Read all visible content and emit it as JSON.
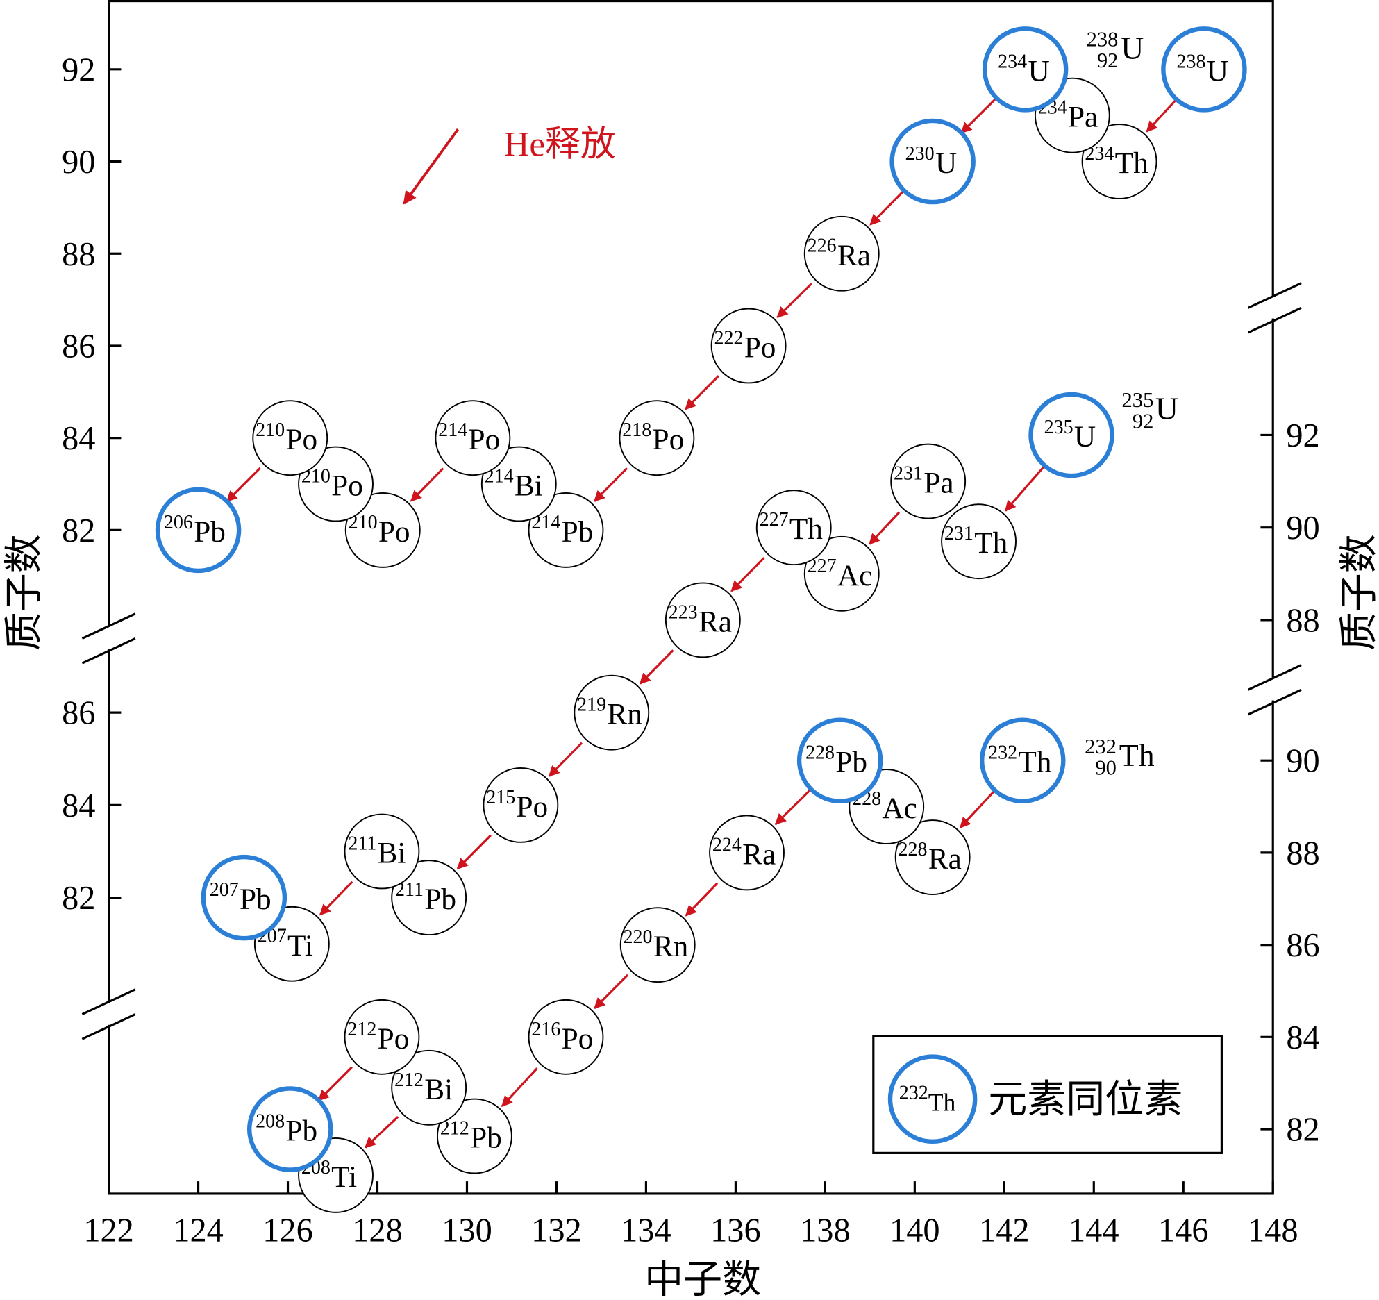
{
  "chart_data": {
    "type": "scatter",
    "x_label": "中子数",
    "y_label": "质子数",
    "xlim": [
      122,
      148
    ],
    "xticks": [
      122,
      124,
      126,
      128,
      130,
      132,
      134,
      136,
      138,
      140,
      142,
      144,
      146,
      148
    ],
    "highlight_color": "#2b7fd6",
    "arrow_color": "#d0141e",
    "annotation": "He释放",
    "legend": {
      "label": "元素同位素",
      "mass": 232,
      "symbol": "Th"
    },
    "series": [
      {
        "mass": 238,
        "charge": 92,
        "symbol": "U",
        "ylim": [
          67.6,
          93.5
        ],
        "yticks": [
          82,
          84,
          86,
          88,
          90,
          92
        ],
        "points": [
          {
            "mass": 238,
            "symbol": "U",
            "x": 146.46,
            "y": 92,
            "highlight": true
          },
          {
            "mass": 234,
            "symbol": "Th",
            "x": 144.57,
            "y": 90
          },
          {
            "mass": 234,
            "symbol": "Pa",
            "x": 143.52,
            "y": 91
          },
          {
            "mass": 234,
            "symbol": "U",
            "x": 142.47,
            "y": 92,
            "highlight": true
          },
          {
            "mass": 230,
            "symbol": "U",
            "x": 140.4,
            "y": 90,
            "highlight": true
          },
          {
            "mass": 226,
            "symbol": "Ra",
            "x": 138.37,
            "y": 88
          },
          {
            "mass": 222,
            "symbol": "Po",
            "x": 136.29,
            "y": 86
          },
          {
            "mass": 218,
            "symbol": "Po",
            "x": 134.24,
            "y": 84
          },
          {
            "mass": 214,
            "symbol": "Pb",
            "x": 132.21,
            "y": 82
          },
          {
            "mass": 214,
            "symbol": "Bi",
            "x": 131.16,
            "y": 83
          },
          {
            "mass": 214,
            "symbol": "Po",
            "x": 130.13,
            "y": 84
          },
          {
            "mass": 210,
            "symbol": "Po",
            "x": 128.12,
            "y": 82
          },
          {
            "mass": 210,
            "symbol": "Po",
            "x": 127.07,
            "y": 83
          },
          {
            "mass": 210,
            "symbol": "Po",
            "x": 126.05,
            "y": 84
          },
          {
            "mass": 206,
            "symbol": "Pb",
            "x": 124.0,
            "y": 82,
            "highlight": true
          }
        ]
      },
      {
        "mass": 235,
        "charge": 92,
        "symbol": "U",
        "ylim": [
          75.6,
          101.4
        ],
        "yticks": [
          82,
          84,
          86
        ],
        "y2ticks": [
          88,
          90,
          92
        ],
        "points": [
          {
            "mass": 235,
            "symbol": "U",
            "x": 143.5,
            "y": 92,
            "highlight": true
          },
          {
            "mass": 231,
            "symbol": "Th",
            "x": 141.43,
            "y": 89.7
          },
          {
            "mass": 231,
            "symbol": "Pa",
            "x": 140.3,
            "y": 91
          },
          {
            "mass": 227,
            "symbol": "Ac",
            "x": 138.37,
            "y": 89
          },
          {
            "mass": 227,
            "symbol": "Th",
            "x": 137.3,
            "y": 90
          },
          {
            "mass": 223,
            "symbol": "Ra",
            "x": 135.27,
            "y": 88
          },
          {
            "mass": 219,
            "symbol": "Rn",
            "x": 133.23,
            "y": 86
          },
          {
            "mass": 215,
            "symbol": "Po",
            "x": 131.2,
            "y": 84
          },
          {
            "mass": 211,
            "symbol": "Pb",
            "x": 129.15,
            "y": 82
          },
          {
            "mass": 211,
            "symbol": "Bi",
            "x": 128.1,
            "y": 83
          },
          {
            "mass": 207,
            "symbol": "Ti",
            "x": 126.09,
            "y": 81
          },
          {
            "mass": 207,
            "symbol": "Pb",
            "x": 125.02,
            "y": 82,
            "highlight": true
          }
        ]
      },
      {
        "mass": 232,
        "charge": 90,
        "symbol": "Th",
        "ylim": [
          80.6,
          106.5
        ],
        "y2ticks": [
          82,
          84,
          86,
          88,
          90
        ],
        "points": [
          {
            "mass": 232,
            "symbol": "Th",
            "x": 142.41,
            "y": 90,
            "highlight": true
          },
          {
            "mass": 228,
            "symbol": "Ra",
            "x": 140.4,
            "y": 87.9
          },
          {
            "mass": 228,
            "symbol": "Ac",
            "x": 139.37,
            "y": 89
          },
          {
            "mass": 228,
            "symbol": "Pb",
            "x": 138.33,
            "y": 90,
            "highlight": true
          },
          {
            "mass": 224,
            "symbol": "Ra",
            "x": 136.25,
            "y": 88
          },
          {
            "mass": 220,
            "symbol": "Rn",
            "x": 134.26,
            "y": 86
          },
          {
            "mass": 216,
            "symbol": "Po",
            "x": 132.21,
            "y": 84
          },
          {
            "mass": 212,
            "symbol": "Pb",
            "x": 130.17,
            "y": 81.85
          },
          {
            "mass": 212,
            "symbol": "Bi",
            "x": 129.15,
            "y": 82.9
          },
          {
            "mass": 212,
            "symbol": "Po",
            "x": 128.1,
            "y": 84
          },
          {
            "mass": 208,
            "symbol": "Ti",
            "x": 127.07,
            "y": 81
          },
          {
            "mass": 208,
            "symbol": "Pb",
            "x": 126.05,
            "y": 82,
            "highlight": true
          }
        ]
      }
    ]
  }
}
